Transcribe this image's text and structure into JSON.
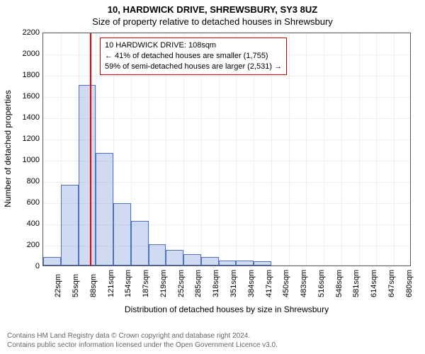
{
  "title_main": "10, HARDWICK DRIVE, SHREWSBURY, SY3 8UZ",
  "title_sub": "Size of property relative to detached houses in Shrewsbury",
  "y_label": "Number of detached properties",
  "x_label": "Distribution of detached houses by size in Shrewsbury",
  "chart": {
    "type": "histogram",
    "background_color": "#ffffff",
    "grid_color": "#eeeeee",
    "axis_color": "#555555",
    "bar_fill": "rgba(120,150,220,0.35)",
    "bar_stroke": "#5070c0",
    "refline_color": "#ee0000",
    "refline_at_category_index": 3,
    "ylim": [
      0,
      2200
    ],
    "y_tick_step": 200,
    "categories": [
      "22sqm",
      "55sqm",
      "88sqm",
      "121sqm",
      "154sqm",
      "187sqm",
      "219sqm",
      "252sqm",
      "285sqm",
      "318sqm",
      "351sqm",
      "384sqm",
      "417sqm",
      "450sqm",
      "483sqm",
      "516sqm",
      "548sqm",
      "581sqm",
      "614sqm",
      "647sqm",
      "680sqm"
    ],
    "values": [
      80,
      760,
      1700,
      1060,
      590,
      420,
      200,
      150,
      110,
      80,
      50,
      50,
      40,
      0,
      0,
      0,
      0,
      0,
      0,
      0,
      0
    ],
    "x_labels_visible": true,
    "label_fontsize": 11,
    "title_fontsize": 13
  },
  "callout": {
    "border_color": "#dd0000",
    "lines": [
      "10 HARDWICK DRIVE: 108sqm",
      "← 41% of detached houses are smaller (1,755)",
      "59% of semi-detached houses are larger (2,531) →"
    ]
  },
  "footer": {
    "line1": "Contains HM Land Registry data © Crown copyright and database right 2024.",
    "line2": "Contains public sector information licensed under the Open Government Licence v3.0."
  }
}
